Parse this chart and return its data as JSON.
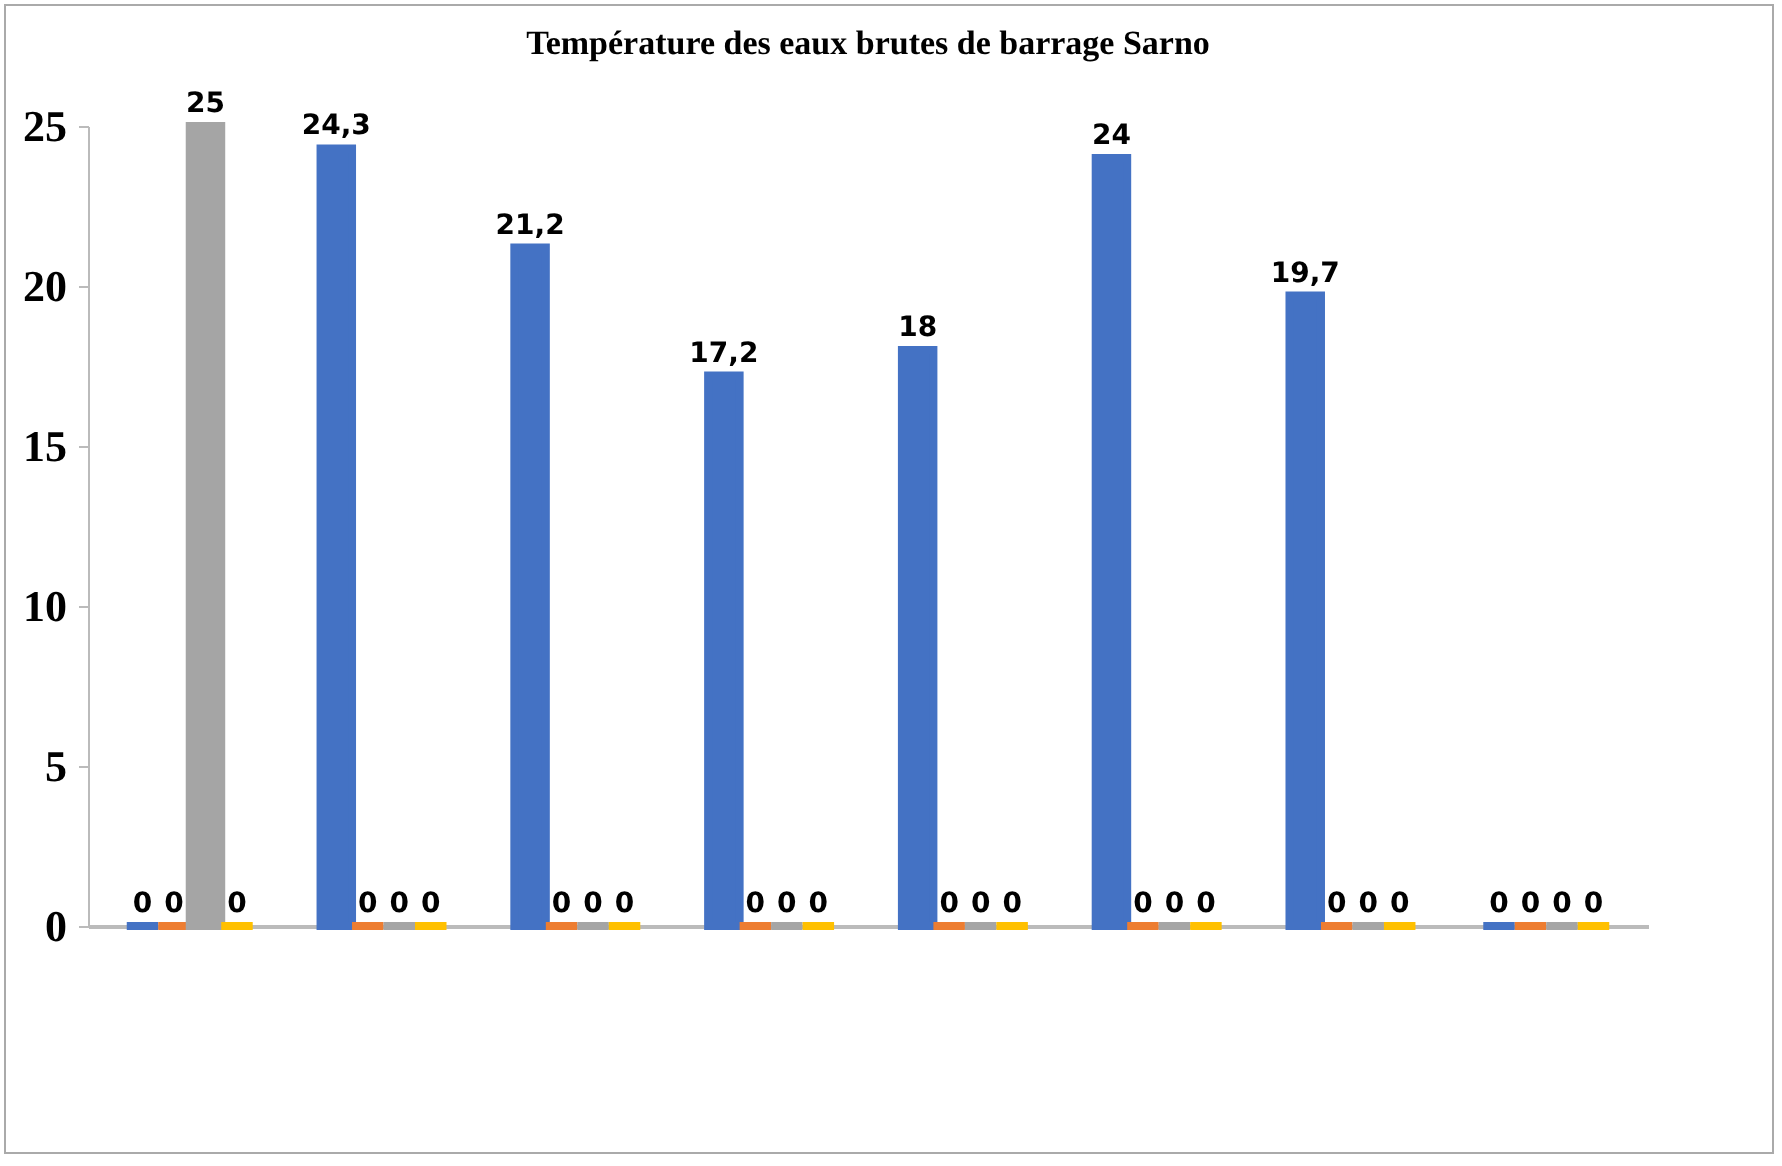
{
  "chart_data": {
    "type": "bar",
    "title": "Température des eaux brutes de barrage Sarno",
    "categories": [
      null,
      null,
      null,
      null,
      null,
      null,
      null,
      null
    ],
    "series": [
      {
        "color": "#4472c4",
        "values": [
          0,
          24.3,
          21.2,
          17.2,
          18,
          24,
          19.7,
          0
        ],
        "value_labels": [
          "0",
          "24,3",
          "21,2",
          "17,2",
          "18",
          "24",
          "19,7",
          "0"
        ]
      },
      {
        "color": "#ed7d31",
        "values": [
          0,
          0,
          0,
          0,
          0,
          0,
          0,
          0
        ],
        "value_labels": [
          "0",
          "0",
          "0",
          "0",
          "0",
          "0",
          "0",
          "0"
        ]
      },
      {
        "color": "#a5a5a5",
        "values": [
          25,
          0,
          0,
          0,
          0,
          0,
          0,
          0
        ],
        "value_labels": [
          "25",
          "0",
          "0",
          "0",
          "0",
          "0",
          "0",
          "0"
        ]
      },
      {
        "color": "#ffc000",
        "values": [
          0,
          0,
          0,
          0,
          0,
          0,
          0,
          0
        ],
        "value_labels": [
          "0",
          "0",
          "0",
          "0",
          "0",
          "0",
          "0",
          "0"
        ]
      }
    ],
    "ylim": [
      0,
      25
    ],
    "yticks": [
      0,
      5,
      10,
      15,
      20,
      25
    ],
    "grid": false,
    "tick_labels": "y"
  }
}
